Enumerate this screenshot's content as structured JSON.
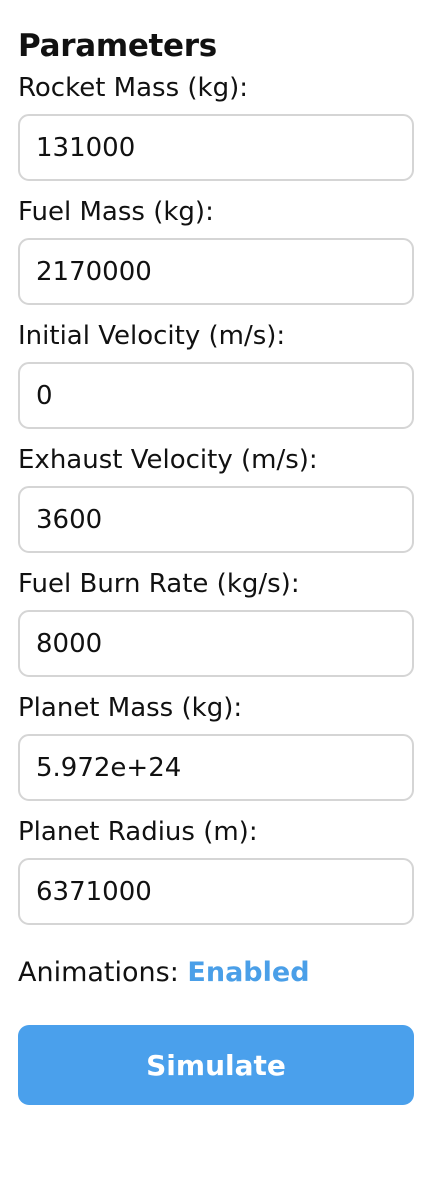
{
  "panel": {
    "title": "Parameters"
  },
  "fields": [
    {
      "label": "Rocket Mass (kg):",
      "value": "131000"
    },
    {
      "label": "Fuel Mass (kg):",
      "value": "2170000"
    },
    {
      "label": "Initial Velocity (m/s):",
      "value": "0"
    },
    {
      "label": "Exhaust Velocity (m/s):",
      "value": "3600"
    },
    {
      "label": "Fuel Burn Rate (kg/s):",
      "value": "8000"
    },
    {
      "label": "Planet Mass (kg):",
      "value": "5.972e+24"
    },
    {
      "label": "Planet Radius (m):",
      "value": "6371000"
    }
  ],
  "animations": {
    "label": "Animations:",
    "status": "Enabled",
    "status_color": "#4a9fe8"
  },
  "actions": {
    "simulate_label": "Simulate",
    "button_color": "#4aa0ec"
  }
}
